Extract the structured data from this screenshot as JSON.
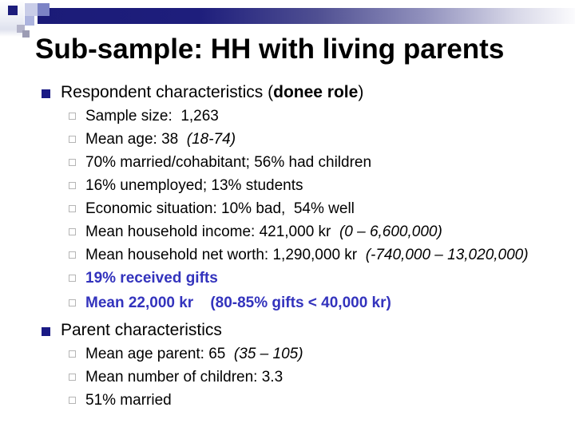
{
  "title": "Sub-sample: HH with living parents",
  "colors": {
    "bar_navy": "#1b1b78",
    "bullet_navy": "#1a1a85",
    "emphasis_blue": "#3333bd",
    "bullet_outline_gray": "#b5b5b5"
  },
  "sections": [
    {
      "heading": {
        "segments": [
          {
            "t": "Respondent characteristics ("
          },
          {
            "t": "donee role",
            "b": true
          },
          {
            "t": ")"
          }
        ]
      },
      "items": [
        {
          "segments": [
            {
              "t": "Sample size:  1,263"
            }
          ]
        },
        {
          "segments": [
            {
              "t": "Mean age: 38  "
            },
            {
              "t": "(18-74)",
              "i": true
            }
          ]
        },
        {
          "segments": [
            {
              "t": "70% married/cohabitant; 56% had children"
            }
          ]
        },
        {
          "segments": [
            {
              "t": "16% unemployed; 13% students"
            }
          ]
        },
        {
          "segments": [
            {
              "t": "Economic situation: 10% bad,  54% well"
            }
          ]
        },
        {
          "segments": [
            {
              "t": "Mean household income: 421,000 kr  "
            },
            {
              "t": "(0 – 6,600,000)",
              "i": true
            }
          ]
        },
        {
          "segments": [
            {
              "t": "Mean household net worth: 1,290,000 kr  "
            },
            {
              "t": "(-740,000 – 13,020,000)",
              "i": true
            }
          ]
        },
        {
          "segments": [
            {
              "t": "19% received gifts",
              "b": true
            }
          ],
          "emphasis": true
        },
        {
          "segments": [
            {
              "t": "Mean 22,000 kr    (80-85% gifts < 40,000 kr)",
              "b": true
            }
          ],
          "emphasis": true,
          "gap_before": true
        }
      ]
    },
    {
      "heading": {
        "segments": [
          {
            "t": "Parent characteristics"
          }
        ]
      },
      "items": [
        {
          "segments": [
            {
              "t": "Mean age parent: 65  "
            },
            {
              "t": "(35 – 105)",
              "i": true
            }
          ]
        },
        {
          "segments": [
            {
              "t": "Mean number of children: 3.3"
            }
          ]
        },
        {
          "segments": [
            {
              "t": "51% married"
            }
          ]
        }
      ]
    }
  ]
}
